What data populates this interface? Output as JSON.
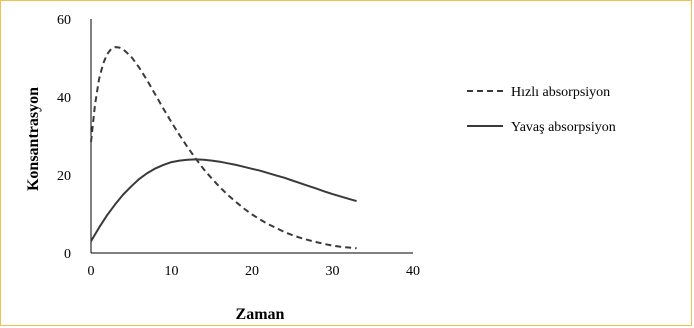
{
  "chart_data": {
    "type": "line",
    "xlabel": "Zaman",
    "ylabel": "Konsantrasyon",
    "xlim": [
      0,
      40
    ],
    "ylim": [
      0,
      60
    ],
    "x_ticks": [
      "0",
      "10",
      "20",
      "30",
      "40"
    ],
    "y_ticks": [
      "0",
      "20",
      "40",
      "60"
    ],
    "grid": false,
    "legend_position": "right",
    "series": [
      {
        "name": "Hızlı absorpsiyon",
        "style": "dashed",
        "color": "#3a3a3a",
        "x": [
          0,
          0.5,
          1,
          1.5,
          2,
          2.5,
          3,
          3.5,
          4,
          5,
          6,
          7,
          8,
          9,
          10,
          11,
          12,
          13,
          14,
          15,
          16,
          17,
          18,
          19,
          20,
          21,
          22,
          23,
          24,
          25,
          26,
          27,
          28,
          29,
          30,
          31,
          32,
          33
        ],
        "y": [
          28.5,
          38,
          44.5,
          48.5,
          51,
          52.3,
          52.8,
          52.7,
          52.2,
          50.3,
          47.5,
          44.2,
          40.6,
          37,
          33.5,
          30.2,
          27.1,
          24.2,
          21.5,
          19.1,
          16.9,
          14.9,
          13.1,
          11.4,
          9.9,
          8.6,
          7.4,
          6.4,
          5.4,
          4.6,
          3.9,
          3.3,
          2.8,
          2.3,
          1.9,
          1.6,
          1.4,
          1.2
        ]
      },
      {
        "name": "Yavaş absorpsiyon",
        "style": "solid",
        "color": "#3a3a3a",
        "x": [
          0,
          1,
          2,
          3,
          4,
          5,
          6,
          7,
          8,
          9,
          10,
          11,
          12,
          13,
          14,
          15,
          16,
          17,
          18,
          19,
          20,
          21,
          22,
          23,
          24,
          25,
          26,
          27,
          28,
          29,
          30,
          31,
          32,
          33
        ],
        "y": [
          3,
          6.5,
          9.7,
          12.5,
          15,
          17.1,
          19,
          20.5,
          21.7,
          22.6,
          23.3,
          23.7,
          23.9,
          24,
          23.9,
          23.7,
          23.4,
          23,
          22.6,
          22.1,
          21.6,
          21.1,
          20.5,
          19.9,
          19.3,
          18.6,
          17.9,
          17.2,
          16.5,
          15.8,
          15.1,
          14.5,
          13.9,
          13.3
        ]
      }
    ]
  }
}
